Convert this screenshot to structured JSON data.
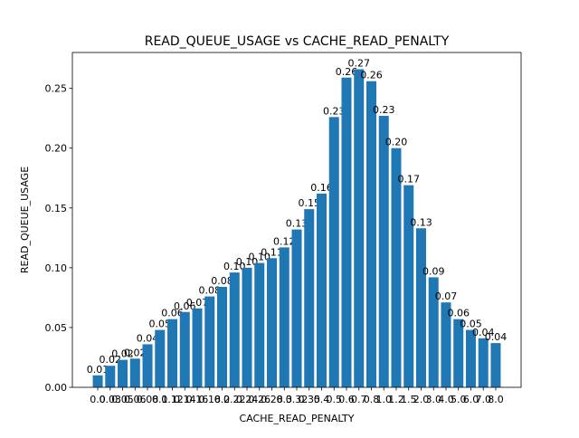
{
  "chart_data": {
    "type": "bar",
    "title": "READ_QUEUE_USAGE vs CACHE_READ_PENALTY",
    "x_label": "CACHE_READ_PENALTY",
    "y_label": "READ_QUEUE_USAGE",
    "color": "#1f77b4",
    "categories": [
      "0.0",
      "0.03",
      "0.05",
      "0.06",
      "0.08",
      "0.1",
      "0.12",
      "0.14",
      "0.16",
      "0.18",
      "0.2",
      "0.22",
      "0.24",
      "0.26",
      "0.28",
      "0.3",
      "0.32",
      "0.35",
      "0.4",
      "0.5",
      "0.6",
      "0.7",
      "0.8",
      "1.0",
      "1.2",
      "1.5",
      "2.0",
      "3.0",
      "4.0",
      "5.0",
      "6.0",
      "7.0",
      "8.0"
    ],
    "values": [
      0.01,
      0.018,
      0.023,
      0.024,
      0.036,
      0.048,
      0.057,
      0.063,
      0.066,
      0.076,
      0.084,
      0.096,
      0.1,
      0.104,
      0.108,
      0.117,
      0.132,
      0.149,
      0.162,
      0.226,
      0.259,
      0.266,
      0.256,
      0.227,
      0.2,
      0.169,
      0.133,
      0.092,
      0.071,
      0.057,
      0.048,
      0.041,
      0.037
    ],
    "value_labels": [
      "0.01",
      "0.02",
      "0.02",
      "0.02",
      "0.04",
      "0.05",
      "0.06",
      "0.06",
      "0.07",
      "0.08",
      "0.08",
      "0.10",
      "0.10",
      "0.10",
      "0.11",
      "0.12",
      "0.13",
      "0.15",
      "0.16",
      "0.23",
      "0.26",
      "0.27",
      "0.26",
      "0.23",
      "0.20",
      "0.17",
      "0.13",
      "0.09",
      "0.07",
      "0.06",
      "0.05",
      "0.04",
      "0.04"
    ],
    "ylim": [
      0,
      0.28
    ],
    "yticks": [
      {
        "value": 0,
        "label": "0.00"
      },
      0.05,
      {
        "value": 0.1,
        "label": "0.10"
      },
      0.15,
      {
        "value": 0.2,
        "label": "0.20"
      },
      0.25
    ]
  }
}
